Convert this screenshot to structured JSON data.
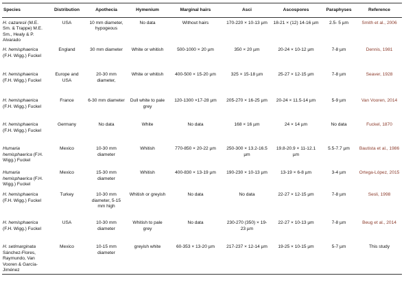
{
  "table": {
    "headers": [
      "Species",
      "Distribution",
      "Apothecia",
      "Hymenium",
      "Marginal hairs",
      "Asci",
      "Ascospores",
      "Paraphyses",
      "Reference"
    ],
    "rows": [
      {
        "name": "H. cazaresii",
        "authority": "(M.E. Sm. & Trappe) M.E. Sm., Healy & P. Alvarado",
        "cells": [
          "USA",
          "10 mm diameter, hypogeous",
          "No data",
          "Without hairs",
          "170-220 × 10-13 µm",
          "18-21 × (12) 14-16 µm",
          "2.5- 5 µm",
          "Smith et al., 2006"
        ]
      },
      {
        "name": "H. hemisphaerica",
        "authority": "(F.H. Wigg.) Fuckel",
        "cells": [
          "England",
          "30 mm diameter",
          "White or whitish",
          "500-1000 × 20 µm",
          "350 × 20 µm",
          "20-24 × 10-12 µm",
          "7-8 µm",
          "Dennis, 1981"
        ]
      },
      {
        "name": "H. hemisphaerica",
        "authority": "(F.H. Wigg.) Fuckel",
        "cells": [
          "Europe and USA",
          "20-30 mm diameter,",
          "White or whitish",
          "400-500 × 15-20 µm",
          "325 × 15-18 µm",
          "25-27 × 12-15 µm",
          "7-8 µm",
          "Seaver, 1928"
        ]
      },
      {
        "name": "H. hemisphaerica",
        "authority": "(F.H. Wigg.) Fuckel",
        "cells": [
          "France",
          "6-30 mm diameter",
          "Dull white to pale grey",
          "120-1300 ×17-28 µm",
          "205-270 × 16-25 µm",
          "20-24 × 11.5-14 µm",
          "5-9 µm",
          "Van Vooren, 2014"
        ]
      },
      {
        "name": "H. hemisphaerica",
        "authority": "(F.H. Wigg.) Fuckel",
        "cells": [
          "Germany",
          "No data",
          "White",
          "No data",
          "168 × 16 µm",
          "24 × 14 µm",
          "No data",
          "Fuckel, 1870"
        ]
      },
      {
        "name": "Humaria hemisphaerica",
        "authority": "(F.H. Wigg.) Fuckel",
        "cells": [
          "Mexico",
          "10-30 mm diameter",
          "Whitish",
          "770-850 × 20-22 µm",
          "250-300 × 13.2-16.5 µm",
          "19.8-20.9 × 11-12.1 µm",
          "5.5-7.7 µm",
          "Bautista et al., 1986"
        ]
      },
      {
        "name": "Humaria hemisphaerica",
        "authority": "(F.H. Wigg.) Fuckel",
        "cells": [
          "Mexico",
          "15-30 mm diameter",
          "Whitish",
          "400-830 × 13-19 µm",
          "190-230 × 10-13 µm",
          "13-19 × 6-8 µm",
          "3-4 µm",
          "Ortega-López, 2015"
        ]
      },
      {
        "name": "H. hemisphaerica",
        "authority": "(F.H. Wigg.) Fuckel",
        "cells": [
          "Turkey",
          "10-30 mm diameter, 5-15 mm high",
          "Whitish or greyish",
          "No data",
          "No data",
          "22-27 × 12-15 µm",
          "7-8 µm",
          "Sesli, 1998"
        ]
      },
      {
        "name": "H. hemisphaerica",
        "authority": "(F.H. Wigg.) Fuckel",
        "cells": [
          "USA",
          "10-30 mm diameter",
          "Whitish to pale grey",
          "No data",
          "230-270 (350) × 19-23 µm",
          "22-27 × 10-13 µm",
          "7-8 µm",
          "Beug et al., 2014"
        ]
      },
      {
        "name": "H. setimarginata",
        "authority": "Sánchez-Flores, Raymundo, Van Vooren & García-Jiménez",
        "cells": [
          "Mexico",
          "10-15 mm diameter",
          "greyish white",
          "60-353 × 13-20 µm",
          "217-237 × 12-14 µm",
          "19-25 × 10-15 µm",
          "5-7 µm",
          "This study"
        ]
      }
    ]
  }
}
